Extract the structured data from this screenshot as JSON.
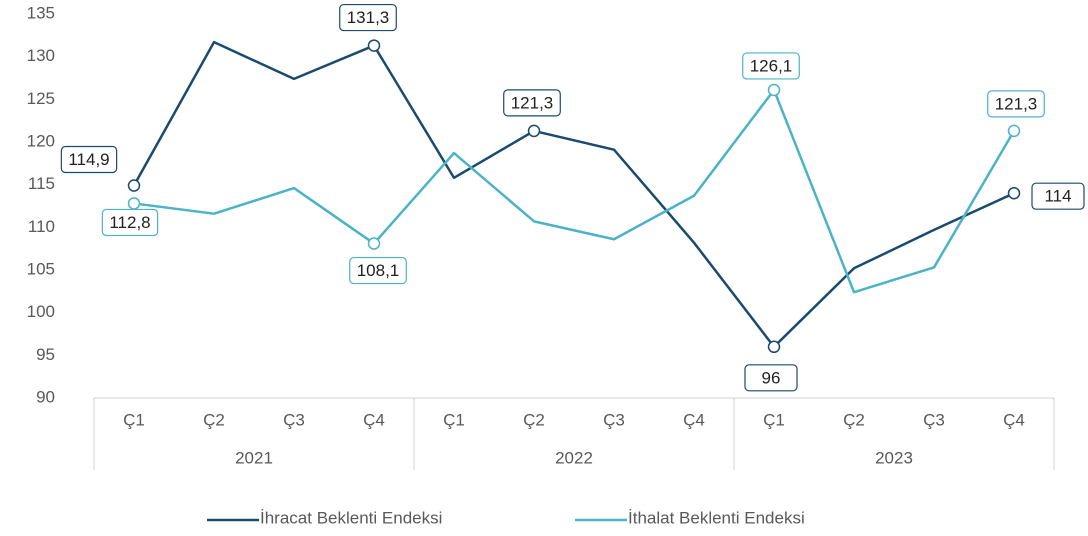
{
  "chart_data": {
    "type": "line",
    "categories": [
      "Ç1",
      "Ç2",
      "Ç3",
      "Ç4",
      "Ç1",
      "Ç2",
      "Ç3",
      "Ç4",
      "Ç1",
      "Ç2",
      "Ç3",
      "Ç4"
    ],
    "groups": [
      "2021",
      "2022",
      "2023"
    ],
    "ylim": [
      90,
      135
    ],
    "yticks": [
      90,
      95,
      100,
      105,
      110,
      115,
      120,
      125,
      130,
      135
    ],
    "legend": "bottom",
    "series": [
      {
        "name": "İhracat Beklenti Endeksi",
        "color": "#1b4a6f",
        "values": [
          114.9,
          131.7,
          127.4,
          131.3,
          115.8,
          121.3,
          119.1,
          108.2,
          96,
          105.2,
          109.7,
          114
        ],
        "value_labels": [
          "114,9",
          null,
          null,
          "131,3",
          null,
          "121,3",
          null,
          null,
          "96",
          null,
          null,
          "114"
        ]
      },
      {
        "name": "İthalat Beklenti Endeksi",
        "color": "#4bb3c8",
        "values": [
          112.8,
          111.6,
          114.6,
          108.1,
          118.7,
          110.7,
          108.6,
          113.7,
          126.1,
          102.4,
          105.3,
          121.3
        ],
        "value_labels": [
          "112,8",
          null,
          null,
          "108,1",
          null,
          null,
          null,
          null,
          "126,1",
          null,
          null,
          "121,3"
        ]
      }
    ]
  }
}
